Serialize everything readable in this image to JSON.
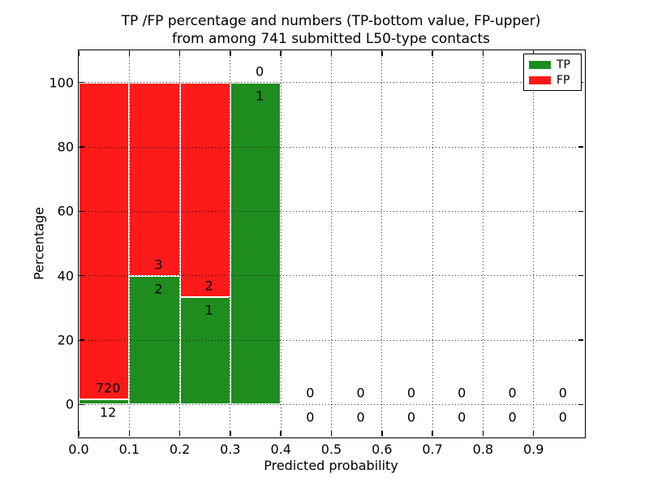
{
  "chart_data": {
    "type": "bar",
    "stacked": true,
    "title_line1": "TP /FP percentage and numbers (TP-bottom value, FP-upper)",
    "title_line2": "from among 741 submitted L50-type contacts",
    "xlabel": "Predicted probability",
    "ylabel": "Percentage",
    "total_submitted": 741,
    "xlim": [
      0.0,
      1.0
    ],
    "ylim": [
      -10,
      110
    ],
    "xticks": [
      0.0,
      0.1,
      0.2,
      0.3,
      0.4,
      0.5,
      0.6,
      0.7,
      0.8,
      0.9
    ],
    "xtick_labels": [
      "0.0",
      "0.1",
      "0.2",
      "0.3",
      "0.4",
      "0.5",
      "0.6",
      "0.7",
      "0.8",
      "0.9"
    ],
    "yticks": [
      0,
      20,
      40,
      60,
      80,
      100
    ],
    "ytick_labels": [
      "0",
      "20",
      "40",
      "60",
      "80",
      "100"
    ],
    "grid": "dotted",
    "colors": {
      "tp": "#1E8C1E",
      "fp": "#FF1A1A",
      "bar_edge": "#FFFFFF",
      "text": "#000000"
    },
    "legend": {
      "position": "upper-right",
      "entries": [
        {
          "label": "TP",
          "color": "#1E8C1E"
        },
        {
          "label": "FP",
          "color": "#FF1A1A"
        }
      ]
    },
    "bins": [
      {
        "range_start": 0.0,
        "range_end": 0.1,
        "tp_count": 12,
        "fp_count": 720,
        "tp_pct": 1.64,
        "fp_pct": 98.36
      },
      {
        "range_start": 0.1,
        "range_end": 0.2,
        "tp_count": 2,
        "fp_count": 3,
        "tp_pct": 40.0,
        "fp_pct": 60.0
      },
      {
        "range_start": 0.2,
        "range_end": 0.3,
        "tp_count": 1,
        "fp_count": 2,
        "tp_pct": 33.33,
        "fp_pct": 66.67
      },
      {
        "range_start": 0.3,
        "range_end": 0.4,
        "tp_count": 1,
        "fp_count": 0,
        "tp_pct": 100.0,
        "fp_pct": 0.0
      },
      {
        "range_start": 0.4,
        "range_end": 0.5,
        "tp_count": 0,
        "fp_count": 0,
        "tp_pct": 0.0,
        "fp_pct": 0.0
      },
      {
        "range_start": 0.5,
        "range_end": 0.6,
        "tp_count": 0,
        "fp_count": 0,
        "tp_pct": 0.0,
        "fp_pct": 0.0
      },
      {
        "range_start": 0.6,
        "range_end": 0.7,
        "tp_count": 0,
        "fp_count": 0,
        "tp_pct": 0.0,
        "fp_pct": 0.0
      },
      {
        "range_start": 0.7,
        "range_end": 0.8,
        "tp_count": 0,
        "fp_count": 0,
        "tp_pct": 0.0,
        "fp_pct": 0.0
      },
      {
        "range_start": 0.8,
        "range_end": 0.9,
        "tp_count": 0,
        "fp_count": 0,
        "tp_pct": 0.0,
        "fp_pct": 0.0
      },
      {
        "range_start": 0.9,
        "range_end": 1.0,
        "tp_count": 0,
        "fp_count": 0,
        "tp_pct": 0.0,
        "fp_pct": 0.0
      }
    ]
  }
}
